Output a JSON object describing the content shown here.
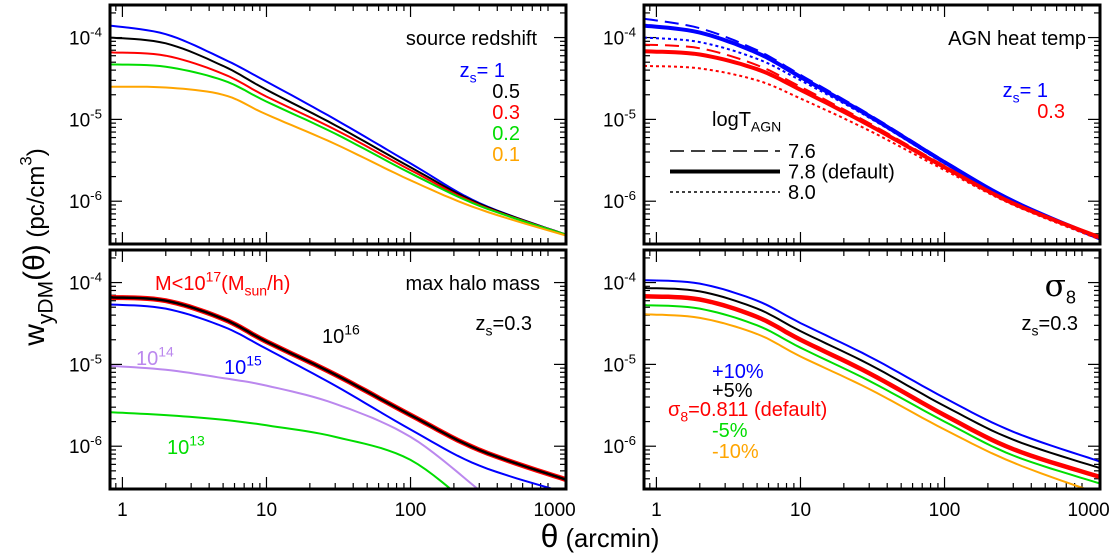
{
  "chart_data": {
    "type": "line",
    "layout": "2x2 panels, shared axes",
    "xlabel": [
      {
        "t": "θ"
      },
      {
        "t": "  (arcmin)",
        "small": true
      }
    ],
    "ylabel": [
      {
        "t": "w"
      },
      {
        "t": "yDM",
        "sub": true
      },
      {
        "t": "(θ)"
      },
      {
        "t": "  (pc/cm",
        "small": true
      },
      {
        "t": "3",
        "sup": true,
        "small": true
      },
      {
        "t": ")",
        "small": true
      }
    ],
    "xscale": "log",
    "yscale": "log",
    "xlim": [
      0.82,
      1200
    ],
    "ylim": [
      3e-07,
      0.00025
    ],
    "x_tick_labels": [
      "1",
      "10",
      "100",
      "1000"
    ],
    "x_tick_values": [
      1,
      10,
      100,
      1000
    ],
    "y_tick_labels": [
      [
        {
          "t": "10"
        },
        {
          "t": "-4",
          "sup": true
        }
      ],
      [
        {
          "t": "10"
        },
        {
          "t": "-5",
          "sup": true
        }
      ],
      [
        {
          "t": "10"
        },
        {
          "t": "-6",
          "sup": true
        }
      ]
    ],
    "y_tick_values": [
      0.0001,
      1e-05,
      1e-06
    ],
    "x": [
      0.82,
      2,
      5,
      10,
      30,
      100,
      300,
      1200
    ],
    "panels": [
      {
        "title": [
          {
            "t": "source redshift"
          }
        ],
        "annotations": [
          {
            "id": "zs1",
            "color": "#0000ff",
            "text": [
              {
                "t": "z"
              },
              {
                "t": "s",
                "sub": true
              },
              {
                "t": "= 1"
              }
            ]
          },
          {
            "id": "z05",
            "color": "#000000",
            "text": [
              {
                "t": "0.5"
              }
            ]
          },
          {
            "id": "z03",
            "color": "#ff0000",
            "text": [
              {
                "t": "0.3"
              }
            ]
          },
          {
            "id": "z02",
            "color": "#00dd00",
            "text": [
              {
                "t": "0.2"
              }
            ]
          },
          {
            "id": "z01",
            "color": "#ffa500",
            "text": [
              {
                "t": "0.1"
              }
            ]
          }
        ],
        "series": [
          {
            "label": "z_s=1",
            "color": "#0000ff",
            "style": "solid",
            "width": 2,
            "y": [
              0.00014,
              0.00011,
              5.5e-05,
              2.9e-05,
              1e-05,
              2.9e-06,
              9.5e-07,
              3.9e-07
            ]
          },
          {
            "label": "z_s=0.5",
            "color": "#000000",
            "style": "solid",
            "width": 2,
            "y": [
              0.0001,
              8.5e-05,
              4.5e-05,
              2.3e-05,
              8.5e-06,
              2.6e-06,
              9.3e-07,
              3.9e-07
            ]
          },
          {
            "label": "z_s=0.3",
            "color": "#ff0000",
            "style": "solid",
            "width": 2,
            "y": [
              6.6e-05,
              6e-05,
              3.6e-05,
              1.9e-05,
              7.5e-06,
              2.4e-06,
              9e-07,
              3.9e-07
            ]
          },
          {
            "label": "z_s=0.2",
            "color": "#00dd00",
            "style": "solid",
            "width": 2,
            "y": [
              4.7e-05,
              4.4e-05,
              3e-05,
              1.65e-05,
              6.7e-06,
              2.2e-06,
              8.8e-07,
              3.9e-07
            ]
          },
          {
            "label": "z_s=0.1",
            "color": "#ffa500",
            "style": "solid",
            "width": 2,
            "y": [
              2.5e-05,
              2.45e-05,
              2e-05,
              1.15e-05,
              5e-06,
              1.8e-06,
              8e-07,
              3.8e-07
            ]
          }
        ]
      },
      {
        "title": [
          {
            "t": "AGN heat temp"
          }
        ],
        "annotations": [
          {
            "id": "zs1",
            "color": "#0000ff",
            "text": [
              {
                "t": "z"
              },
              {
                "t": "s",
                "sub": true
              },
              {
                "t": "= 1"
              }
            ]
          },
          {
            "id": "z03",
            "color": "#ff0000",
            "text": [
              {
                "t": "0.3"
              }
            ]
          },
          {
            "id": "legtitle",
            "color": "#000000",
            "text": [
              {
                "t": "logT"
              },
              {
                "t": "AGN",
                "sub": true
              }
            ]
          }
        ],
        "legend": [
          {
            "label": "7.6",
            "style": "dashed"
          },
          {
            "label": "7.8 (default)",
            "style": "thick"
          },
          {
            "label": "8.0",
            "style": "dotted"
          }
        ],
        "series": [
          {
            "label": "z_s=1, 7.6",
            "color": "#0000ff",
            "style": "dashed",
            "width": 2,
            "y": [
              0.00017,
              0.00013,
              7e-05,
              3.5e-05,
              1.15e-05,
              3.1e-06,
              1e-06,
              3.5e-07
            ]
          },
          {
            "label": "z_s=1, 7.8",
            "color": "#0000ff",
            "style": "thick",
            "width": 4,
            "y": [
              0.00014,
              0.000115,
              6.5e-05,
              3.3e-05,
              1.1e-05,
              3e-06,
              1e-06,
              3.5e-07
            ]
          },
          {
            "label": "z_s=1, 8.0",
            "color": "#0000ff",
            "style": "dotted",
            "width": 2,
            "y": [
              0.0001,
              8.8e-05,
              5.5e-05,
              3e-05,
              1.05e-05,
              2.9e-06,
              9.8e-07,
              3.4e-07
            ]
          },
          {
            "label": "z_s=0.3, 7.6",
            "color": "#ff0000",
            "style": "dashed",
            "width": 2,
            "y": [
              8.2e-05,
              7.4e-05,
              4.6e-05,
              2.5e-05,
              9e-06,
              2.7e-06,
              9.5e-07,
              3.5e-07
            ]
          },
          {
            "label": "z_s=0.3, 7.8",
            "color": "#ff0000",
            "style": "thick",
            "width": 4,
            "y": [
              6.8e-05,
              6.2e-05,
              4.1e-05,
              2.3e-05,
              8.5e-06,
              2.6e-06,
              9.4e-07,
              3.6e-07
            ]
          },
          {
            "label": "z_s=0.3, 8.0",
            "color": "#ff0000",
            "style": "dotted",
            "width": 2,
            "y": [
              4.5e-05,
              4.2e-05,
              3e-05,
              1.8e-05,
              7.3e-06,
              2.4e-06,
              9e-07,
              3.4e-07
            ]
          }
        ]
      },
      {
        "title": [
          {
            "t": "max halo mass"
          }
        ],
        "annotations": [
          {
            "id": "zs",
            "color": "#000000",
            "text": [
              {
                "t": "z"
              },
              {
                "t": "s",
                "sub": true
              },
              {
                "t": "=0.3"
              }
            ]
          },
          {
            "id": "m17",
            "color": "#ff0000",
            "text": [
              {
                "t": "M<10"
              },
              {
                "t": "17",
                "sup": true
              },
              {
                "t": "(M"
              },
              {
                "t": "sun",
                "sub": true
              },
              {
                "t": "/h)"
              }
            ]
          },
          {
            "id": "m16",
            "color": "#000000",
            "text": [
              {
                "t": "10"
              },
              {
                "t": "16",
                "sup": true
              }
            ]
          },
          {
            "id": "m15",
            "color": "#0000ff",
            "text": [
              {
                "t": "10"
              },
              {
                "t": "15",
                "sup": true
              }
            ]
          },
          {
            "id": "m14",
            "color": "#bb88ee",
            "text": [
              {
                "t": "10"
              },
              {
                "t": "14",
                "sup": true
              }
            ]
          },
          {
            "id": "m13",
            "color": "#00dd00",
            "text": [
              {
                "t": "10"
              },
              {
                "t": "13",
                "sup": true
              }
            ]
          }
        ],
        "series": [
          {
            "label": "M<1e17",
            "color": "#ff0000",
            "style": "solid",
            "width": 5,
            "y": [
              6.6e-05,
              6e-05,
              3.6e-05,
              1.9e-05,
              7.5e-06,
              2.4e-06,
              9e-07,
              3.9e-07
            ]
          },
          {
            "label": "M<1e16",
            "color": "#000000",
            "style": "solid",
            "width": 2.5,
            "y": [
              6.6e-05,
              6e-05,
              3.6e-05,
              1.9e-05,
              7.5e-06,
              2.4e-06,
              9e-07,
              3.9e-07
            ]
          },
          {
            "label": "M<1e15",
            "color": "#0000ff",
            "style": "solid",
            "width": 2,
            "y": [
              5.4e-05,
              4.8e-05,
              2.9e-05,
              1.55e-05,
              5.5e-06,
              1.6e-06,
              5.8e-07,
              2.7e-07
            ]
          },
          {
            "label": "M<1e14",
            "color": "#bb88ee",
            "style": "solid",
            "width": 2,
            "y": [
              9.6e-06,
              8.6e-06,
              6.8e-06,
              5.5e-06,
              3.3e-06,
              1.3e-06,
              2.9e-07,
              null
            ]
          },
          {
            "label": "M<1e13",
            "color": "#00dd00",
            "style": "solid",
            "width": 2,
            "y": [
              2.6e-06,
              2.4e-06,
              2.1e-06,
              1.8e-06,
              1.3e-06,
              6.8e-07,
              1.5e-07,
              null
            ]
          }
        ]
      },
      {
        "title": [
          {
            "t": "σ",
            "serif": true
          },
          {
            "t": "8",
            "sub": true
          }
        ],
        "annotations": [
          {
            "id": "zs",
            "color": "#000000",
            "text": [
              {
                "t": "z"
              },
              {
                "t": "s",
                "sub": true
              },
              {
                "t": "=0.3"
              }
            ]
          },
          {
            "id": "p10",
            "color": "#0000ff",
            "text": [
              {
                "t": "+10%"
              }
            ]
          },
          {
            "id": "p5",
            "color": "#000000",
            "text": [
              {
                "t": "+5%"
              }
            ]
          },
          {
            "id": "def",
            "color": "#ff0000",
            "text": [
              {
                "t": "σ"
              },
              {
                "t": "8",
                "sub": true
              },
              {
                "t": "=0.811 (default)"
              }
            ]
          },
          {
            "id": "m5",
            "color": "#00dd00",
            "text": [
              {
                "t": "-5%"
              }
            ]
          },
          {
            "id": "m10",
            "color": "#ffa500",
            "text": [
              {
                "t": "-10%"
              }
            ]
          }
        ],
        "series": [
          {
            "label": "+10%",
            "color": "#0000ff",
            "style": "solid",
            "width": 2,
            "y": [
              0.000107,
              9.7e-05,
              6e-05,
              3.2e-05,
              1.25e-05,
              3.9e-06,
              1.5e-06,
              6.5e-07
            ]
          },
          {
            "label": "+5%",
            "color": "#000000",
            "style": "solid",
            "width": 2,
            "y": [
              8.6e-05,
              7.8e-05,
              4.8e-05,
              2.55e-05,
              1e-05,
              3.1e-06,
              1.2e-06,
              5.4e-07
            ]
          },
          {
            "label": "σ8=0.811 (default)",
            "color": "#ff0000",
            "style": "thick",
            "width": 4.5,
            "y": [
              6.8e-05,
              6.2e-05,
              3.8e-05,
              2e-05,
              7.8e-06,
              2.4e-06,
              9.2e-07,
              4.2e-07
            ]
          },
          {
            "label": "-5%",
            "color": "#00dd00",
            "style": "solid",
            "width": 2,
            "y": [
              5.3e-05,
              4.8e-05,
              3e-05,
              1.6e-05,
              6.3e-06,
              2e-06,
              7.7e-07,
              3.5e-07
            ]
          },
          {
            "label": "-10%",
            "color": "#ffa500",
            "style": "solid",
            "width": 2,
            "y": [
              4.1e-05,
              3.7e-05,
              2.35e-05,
              1.25e-05,
              5e-06,
              1.6e-06,
              6.3e-07,
              2.6e-07
            ]
          }
        ]
      }
    ]
  }
}
